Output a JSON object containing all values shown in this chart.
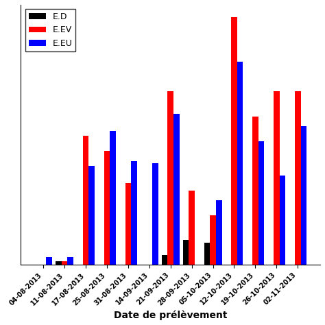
{
  "categories": [
    "04-08-2013",
    "11-08-2013",
    "17-08-2013",
    "25-08-2013",
    "31-08-2013",
    "14-09-2013",
    "21-09-2013",
    "28-09-2013",
    "05-10-2013",
    "12-10-2013",
    "19-10-2013",
    "26-10-2013",
    "02-11-2013"
  ],
  "ED": [
    0.0,
    0.015,
    0.0,
    0.0,
    0.0,
    0.0,
    0.04,
    0.1,
    0.09,
    0.0,
    0.0,
    0.0,
    0.0
  ],
  "EEV": [
    0.0,
    0.015,
    0.52,
    0.46,
    0.33,
    0.0,
    0.7,
    0.3,
    0.2,
    1.0,
    0.6,
    0.7,
    0.7
  ],
  "EEU": [
    0.03,
    0.03,
    0.4,
    0.54,
    0.42,
    0.41,
    0.61,
    0.0,
    0.26,
    0.82,
    0.5,
    0.36,
    0.56
  ],
  "colors": {
    "ED": "#000000",
    "EEV": "#ff0000",
    "EEU": "#0000ff"
  },
  "xlabel": "Date de prélèvement",
  "legend_labels": [
    "E.D",
    "E.EV",
    "E.EU"
  ],
  "bar_width": 0.28,
  "figsize": [
    4.74,
    4.74
  ],
  "dpi": 100
}
